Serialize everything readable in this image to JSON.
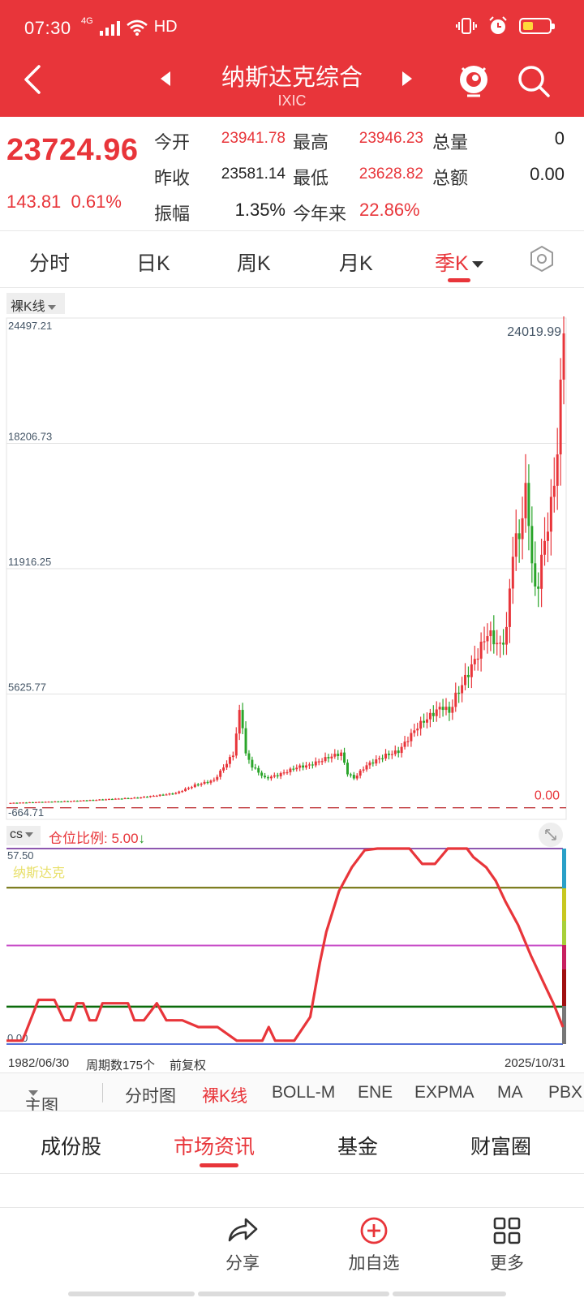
{
  "status_bar": {
    "time": "07:30",
    "network": "4G",
    "quality": "HD"
  },
  "header": {
    "title": "纳斯达克综合",
    "code": "IXIC"
  },
  "quote": {
    "price": "23724.96",
    "change": "143.81",
    "change_pct": "0.61%",
    "fields": [
      {
        "label": "今开",
        "value": "23941.78"
      },
      {
        "label": "最高",
        "value": "23946.23"
      },
      {
        "label": "总量",
        "value": "0"
      },
      {
        "label": "昨收",
        "value": "23581.14"
      },
      {
        "label": "最低",
        "value": "23628.82"
      },
      {
        "label": "总额",
        "value": "0.00"
      },
      {
        "label": "振幅",
        "value": "1.35%"
      },
      {
        "label": "今年来",
        "value": "22.86%"
      }
    ]
  },
  "period_tabs": [
    "分时",
    "日K",
    "周K",
    "月K",
    "季K"
  ],
  "active_period": "季K",
  "kline_type": "裸K线",
  "indicator": {
    "name": "cs",
    "ratio_label": "仓位比例: 5.00",
    "arrow": "↓",
    "overlay_name": "纳斯达克"
  },
  "dates": {
    "start": "1982/06/30",
    "count_label": "周期数175个",
    "adjust": "前复权",
    "end": "2025/10/31"
  },
  "indicator_bar": [
    "主图",
    "分时图",
    "裸K线",
    "BOLL-M",
    "ENE",
    "EXPMA",
    "MA",
    "PBX"
  ],
  "active_indicator": "裸K线",
  "bottom_tabs": [
    "成份股",
    "市场资讯",
    "基金",
    "财富圈"
  ],
  "active_bottom_tab": "市场资讯",
  "actions": [
    {
      "label": "分享",
      "icon": "share-icon"
    },
    {
      "label": "加自选",
      "icon": "add-circle-icon"
    },
    {
      "label": "更多",
      "icon": "grid-icon"
    }
  ],
  "colors": {
    "brand": "#e8353a",
    "up": "#e8353a",
    "down": "#2aa52a"
  },
  "chart_data": [
    {
      "type": "candlestick",
      "title": "",
      "y_ticks": [
        "24497.21",
        "18206.73",
        "11916.25",
        "5625.77",
        "-664.71"
      ],
      "y_range": [
        -664.71,
        24497.21
      ],
      "last_value_label": "24019.99",
      "baseline_label": "0.00",
      "x_range": [
        "1982/06/30",
        "2025/10/31"
      ],
      "periods": 175,
      "close_anchors": [
        [
          0,
          160
        ],
        [
          20,
          260
        ],
        [
          40,
          420
        ],
        [
          52,
          650
        ],
        [
          58,
          1050
        ],
        [
          64,
          1300
        ],
        [
          70,
          2600
        ],
        [
          72,
          4700
        ],
        [
          73,
          4050
        ],
        [
          74,
          2600
        ],
        [
          76,
          2000
        ],
        [
          80,
          1400
        ],
        [
          84,
          1550
        ],
        [
          90,
          1950
        ],
        [
          94,
          2050
        ],
        [
          100,
          2450
        ],
        [
          104,
          2650
        ],
        [
          106,
          1650
        ],
        [
          108,
          1400
        ],
        [
          112,
          2050
        ],
        [
          118,
          2550
        ],
        [
          122,
          2750
        ],
        [
          128,
          4000
        ],
        [
          134,
          4800
        ],
        [
          136,
          5000
        ],
        [
          138,
          4700
        ],
        [
          140,
          5500
        ],
        [
          146,
          7300
        ],
        [
          150,
          8700
        ],
        [
          154,
          8000
        ],
        [
          156,
          8800
        ],
        [
          158,
          12900
        ],
        [
          160,
          13600
        ],
        [
          162,
          15700
        ],
        [
          163,
          14500
        ],
        [
          164,
          12100
        ],
        [
          165,
          10800
        ],
        [
          166,
          11300
        ],
        [
          168,
          13300
        ],
        [
          170,
          15000
        ],
        [
          172,
          17800
        ],
        [
          174,
          23724.96
        ]
      ]
    },
    {
      "type": "line",
      "title": "",
      "y_ticks": [
        "57.50",
        "0.00"
      ],
      "y_range": [
        0,
        57.5
      ],
      "reference_lines": [
        57.5,
        46,
        29,
        11,
        0
      ],
      "points": [
        [
          0,
          1
        ],
        [
          5,
          1
        ],
        [
          10,
          13
        ],
        [
          15,
          13
        ],
        [
          18,
          7
        ],
        [
          20,
          7
        ],
        [
          22,
          12
        ],
        [
          24,
          12
        ],
        [
          26,
          7
        ],
        [
          28,
          7
        ],
        [
          30,
          12
        ],
        [
          34,
          12
        ],
        [
          38,
          12
        ],
        [
          40,
          7
        ],
        [
          43,
          7
        ],
        [
          47,
          12
        ],
        [
          50,
          7
        ],
        [
          55,
          7
        ],
        [
          60,
          5
        ],
        [
          66,
          5
        ],
        [
          72,
          1
        ],
        [
          76,
          1
        ],
        [
          80,
          1
        ],
        [
          82,
          5
        ],
        [
          84,
          1
        ],
        [
          86,
          1
        ],
        [
          90,
          1
        ],
        [
          95,
          8
        ],
        [
          98,
          24
        ],
        [
          100,
          33
        ],
        [
          104,
          45
        ],
        [
          108,
          52
        ],
        [
          112,
          57
        ],
        [
          116,
          57.5
        ],
        [
          122,
          57.5
        ],
        [
          126,
          57.5
        ],
        [
          130,
          53
        ],
        [
          134,
          53
        ],
        [
          138,
          57.5
        ],
        [
          144,
          57.5
        ],
        [
          146,
          55
        ],
        [
          150,
          52
        ],
        [
          153,
          48
        ],
        [
          156,
          42
        ],
        [
          160,
          35
        ],
        [
          164,
          26
        ],
        [
          168,
          18
        ],
        [
          171,
          12
        ],
        [
          174,
          5
        ]
      ]
    }
  ]
}
